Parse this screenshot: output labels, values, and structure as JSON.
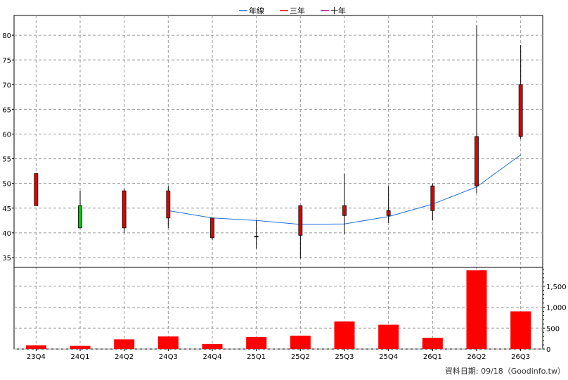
{
  "chart_data": {
    "type": "candlestick+bar",
    "legend": [
      {
        "label": "年線",
        "color": "#1e6fd9"
      },
      {
        "label": "三年",
        "color": "#e00000"
      },
      {
        "label": "十年",
        "color": "#a0107a"
      }
    ],
    "categories": [
      "23Q4",
      "24Q1",
      "24Q2",
      "24Q3",
      "24Q4",
      "25Q1",
      "25Q2",
      "25Q3",
      "25Q4",
      "26Q1",
      "26Q2",
      "26Q3"
    ],
    "price": {
      "ylim": [
        33,
        84
      ],
      "yticks": [
        35,
        40,
        45,
        50,
        55,
        60,
        65,
        70,
        75,
        80
      ],
      "candles": [
        {
          "open": 45.5,
          "high": 52.0,
          "low": 45.5,
          "close": 52.0
        },
        {
          "open": 45.5,
          "high": 48.5,
          "low": 41.0,
          "close": 41.0
        },
        {
          "open": 41.0,
          "high": 49.0,
          "low": 40.0,
          "close": 48.5
        },
        {
          "open": 43.0,
          "high": 49.5,
          "low": 41.0,
          "close": 48.5
        },
        {
          "open": 39.0,
          "high": 43.0,
          "low": 38.5,
          "close": 43.0
        },
        {
          "open": 39.3,
          "high": 42.5,
          "low": 36.8,
          "close": 39.3
        },
        {
          "open": 39.5,
          "high": 45.5,
          "low": 34.8,
          "close": 45.5
        },
        {
          "open": 43.5,
          "high": 52.0,
          "low": 39.8,
          "close": 45.5
        },
        {
          "open": 43.5,
          "high": 49.5,
          "low": 42.0,
          "close": 44.5
        },
        {
          "open": 44.5,
          "high": 50.0,
          "low": 42.5,
          "close": 49.5
        },
        {
          "open": 49.5,
          "high": 82.0,
          "low": 48.0,
          "close": 59.5
        },
        {
          "open": 59.5,
          "high": 78.0,
          "low": 59.0,
          "close": 70.0
        }
      ],
      "rising_color": "#e00000",
      "falling_color": "#00cc00",
      "year_line": {
        "start_index": 3,
        "values": [
          44.5,
          43.0,
          42.5,
          41.7,
          41.8,
          43.3,
          45.8,
          49.3,
          55.8
        ]
      }
    },
    "volume": {
      "ylim": [
        0,
        1950
      ],
      "yticks": [
        0,
        500,
        1000,
        1500
      ],
      "ytick_labels": [
        "0",
        "500",
        "1,000",
        "1,500"
      ],
      "values": [
        90,
        75,
        230,
        300,
        120,
        285,
        320,
        660,
        580,
        270,
        1880,
        900
      ],
      "color": "#ff0000"
    }
  },
  "footer": {
    "text": "資料日期: 09/18（Goodinfo.tw）"
  }
}
